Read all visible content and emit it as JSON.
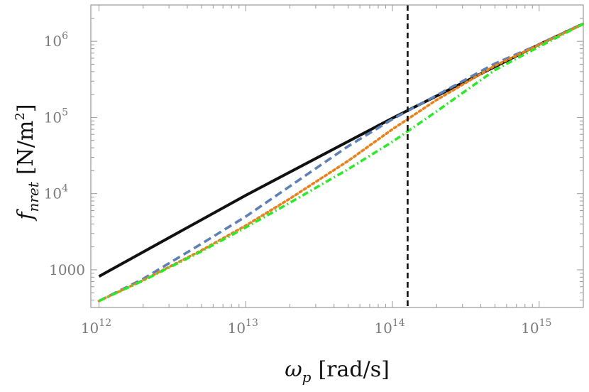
{
  "chart_data": {
    "type": "line",
    "x_scale": "log",
    "y_scale": "log",
    "xlim": [
      880000000000.0,
      2000000000000000.0
    ],
    "ylim": [
      320,
      3000000.0
    ],
    "xlabel": {
      "symbol": "ω",
      "sub": "p",
      "unit": "[rad/s]"
    },
    "ylabel": {
      "symbol": "f",
      "sub": "nret",
      "unit": "[N/m",
      "sup": "2",
      "unit_end": "]"
    },
    "x_ticks": [
      {
        "value": 1000000000000.0,
        "base": "10",
        "exp": "12"
      },
      {
        "value": 10000000000000.0,
        "base": "10",
        "exp": "13"
      },
      {
        "value": 100000000000000.0,
        "base": "10",
        "exp": "14"
      },
      {
        "value": 1000000000000000.0,
        "base": "10",
        "exp": "15"
      }
    ],
    "y_ticks": [
      {
        "value": 1000,
        "base": "1000",
        "exp": ""
      },
      {
        "value": 10000,
        "base": "10",
        "exp": "4"
      },
      {
        "value": 100000,
        "base": "10",
        "exp": "5"
      },
      {
        "value": 1000000,
        "base": "10",
        "exp": "6"
      }
    ],
    "vline": {
      "x": 127000000000000.0,
      "color": "#111111",
      "style": "dashed"
    },
    "grid": false,
    "series": [
      {
        "color": "#111111",
        "style": "solid",
        "x": [
          1000000000000.0,
          10000000000000.0,
          100000000000000.0,
          1000000000000000.0,
          2000000000000000.0
        ],
        "y": [
          820,
          9500,
          98000,
          910000,
          1700000
        ]
      },
      {
        "color": "#5e81b5",
        "style": "dashed",
        "x": [
          1000000000000.0,
          2000000000000.0,
          5000000000000.0,
          10000000000000.0,
          20000000000000.0,
          50000000000000.0,
          100000000000000.0,
          200000000000000.0,
          500000000000000.0,
          1000000000000000.0,
          2000000000000000.0
        ],
        "y": [
          390,
          760,
          2200,
          5000,
          12500,
          42000,
          95000,
          195000,
          510000,
          910000,
          1700000
        ]
      },
      {
        "color": "#e8821c",
        "style": "dotted",
        "x": [
          1000000000000.0,
          2000000000000.0,
          5000000000000.0,
          10000000000000.0,
          20000000000000.0,
          50000000000000.0,
          100000000000000.0,
          200000000000000.0,
          500000000000000.0,
          1000000000000000.0,
          2000000000000000.0
        ],
        "y": [
          390,
          730,
          1800,
          3800,
          8600,
          27000,
          70000,
          170000,
          480000,
          900000,
          1700000
        ]
      },
      {
        "color": "#2ee82e",
        "style": "dashdot",
        "x": [
          1000000000000.0,
          2000000000000.0,
          5000000000000.0,
          10000000000000.0,
          20000000000000.0,
          50000000000000.0,
          100000000000000.0,
          200000000000000.0,
          500000000000000.0,
          1000000000000000.0,
          2000000000000000.0
        ],
        "y": [
          390,
          720,
          1750,
          3600,
          7600,
          21000,
          48000,
          120000,
          420000,
          850000,
          1700000
        ]
      }
    ]
  }
}
